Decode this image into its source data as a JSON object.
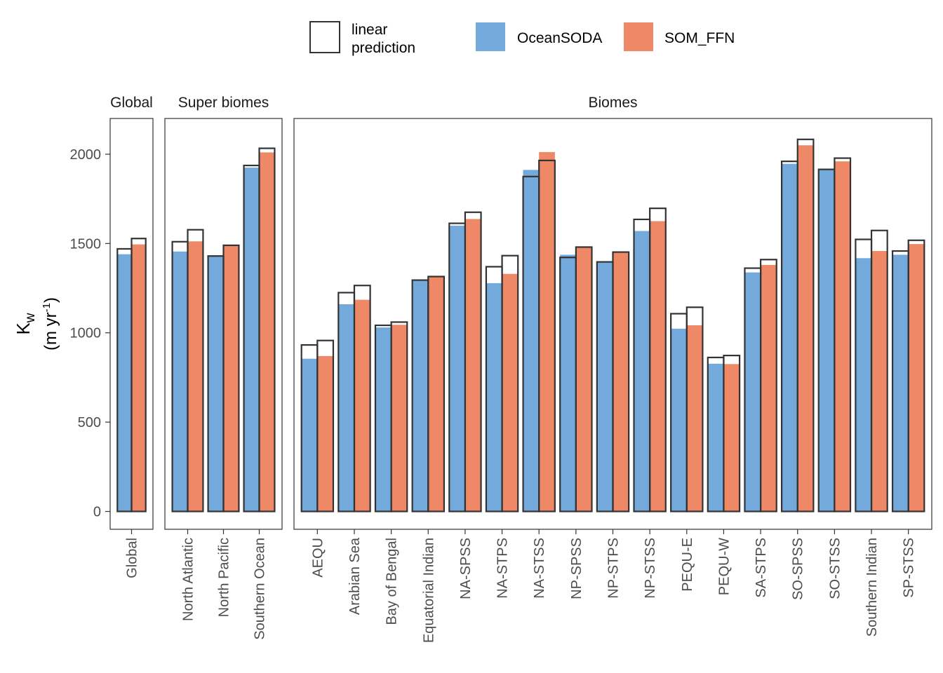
{
  "chart_data": {
    "type": "bar",
    "ylabel_main": "K",
    "ylabel_sub": "w",
    "ylabel_units_open": "(m yr",
    "ylabel_units_sup": "-1",
    "ylabel_units_close": ")",
    "ylim": [
      -100,
      2200
    ],
    "yticks": [
      0,
      500,
      1000,
      1500,
      2000
    ],
    "grid": false,
    "legend_position": "top",
    "legend": {
      "outline_label_line1": "linear",
      "outline_label_line2": "prediction",
      "series": [
        {
          "name": "OceanSODA",
          "color": "#74A9DC"
        },
        {
          "name": "SOM_FFN",
          "color": "#EE8866"
        }
      ]
    },
    "panels": [
      {
        "title": "Global",
        "categories": [
          "Global"
        ],
        "series": [
          {
            "name": "OceanSODA",
            "values": [
              1440
            ],
            "linear_prediction": [
              1470
            ]
          },
          {
            "name": "SOM_FFN",
            "values": [
              1495
            ],
            "linear_prediction": [
              1528
            ]
          }
        ]
      },
      {
        "title": "Super biomes",
        "categories": [
          "North Atlantic",
          "North Pacific",
          "Southern Ocean"
        ],
        "series": [
          {
            "name": "OceanSODA",
            "values": [
              1455,
              1430,
              1925
            ],
            "linear_prediction": [
              1510,
              1430,
              1937
            ]
          },
          {
            "name": "SOM_FFN",
            "values": [
              1512,
              1490,
              2010
            ],
            "linear_prediction": [
              1577,
              1490,
              2033
            ]
          }
        ]
      },
      {
        "title": "Biomes",
        "categories": [
          "AEQU",
          "Arabian Sea",
          "Bay of Bengal",
          "Equatorial Indian",
          "NA-SPSS",
          "NA-STPS",
          "NA-STSS",
          "NP-SPSS",
          "NP-STPS",
          "NP-STSS",
          "PEQU-E",
          "PEQU-W",
          "SA-STPS",
          "SO-SPSS",
          "SO-STSS",
          "Southern Indian",
          "SP-STSS"
        ],
        "series": [
          {
            "name": "OceanSODA",
            "values": [
              855,
              1160,
              1030,
              1295,
              1600,
              1278,
              1912,
              1437,
              1400,
              1570,
              1023,
              827,
              1338,
              1946,
              1913,
              1418,
              1437
            ],
            "linear_prediction": [
              932,
              1225,
              1042,
              1295,
              1613,
              1370,
              1875,
              1422,
              1397,
              1635,
              1107,
              862,
              1362,
              1960,
              1915,
              1523,
              1458
            ]
          },
          {
            "name": "SOM_FFN",
            "values": [
              870,
              1185,
              1045,
              1312,
              1637,
              1330,
              2012,
              1480,
              1452,
              1625,
              1042,
              825,
              1380,
              2050,
              1960,
              1458,
              1497
            ],
            "linear_prediction": [
              957,
              1265,
              1060,
              1315,
              1675,
              1432,
              1965,
              1480,
              1452,
              1697,
              1143,
              873,
              1410,
              2083,
              1978,
              1573,
              1518
            ]
          }
        ]
      }
    ]
  }
}
